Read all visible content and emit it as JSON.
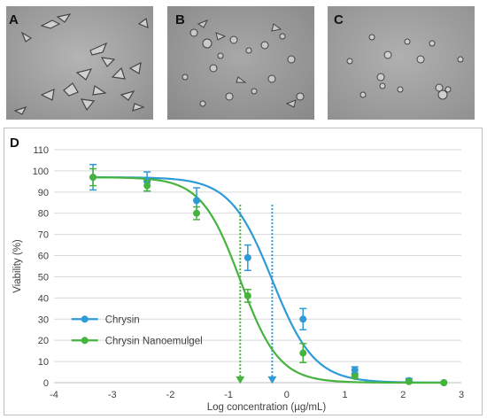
{
  "panels": {
    "a_label": "A",
    "b_label": "B",
    "c_label": "C",
    "d_label": "D"
  },
  "colors": {
    "chrysin": "#2e9bd6",
    "nanoemulgel": "#46b33f",
    "micrograph_bg": "#9e9e9e"
  },
  "chart_data": {
    "type": "line",
    "xlabel": "Log concentration (µg/mL)",
    "ylabel": "Viability  (%)",
    "xlim": [
      -4,
      3
    ],
    "ylim": [
      0,
      110
    ],
    "x_ticks": [
      -4,
      -3,
      -2,
      -1,
      0,
      1,
      2,
      3
    ],
    "y_ticks": [
      0,
      10,
      20,
      30,
      40,
      50,
      60,
      70,
      80,
      90,
      100,
      110
    ],
    "grid": true,
    "legend_position": "lower-left",
    "series": [
      {
        "name": "Chrysin",
        "color": "#2e9bd6",
        "x": [
          -3.33,
          -2.4,
          -1.55,
          -0.67,
          0.28,
          1.17,
          2.1,
          2.7
        ],
        "y": [
          97,
          95,
          86,
          59,
          30,
          6,
          1,
          0
        ],
        "err": [
          6,
          4.5,
          6,
          6,
          5,
          1.5,
          1,
          0
        ],
        "curve": {
          "top": 97,
          "bottom": 0,
          "log_ic50": -0.25,
          "hill": 1.2
        },
        "ic50_marker_x": -0.25
      },
      {
        "name": "Chrysin Nanoemulgel",
        "color": "#46b33f",
        "x": [
          -3.33,
          -2.4,
          -1.55,
          -0.67,
          0.28,
          1.17,
          2.1,
          2.7
        ],
        "y": [
          97,
          93,
          80,
          41,
          14,
          3,
          0.5,
          0
        ],
        "err": [
          4,
          2.5,
          3,
          3,
          4.5,
          1,
          0.5,
          0
        ],
        "curve": {
          "top": 97,
          "bottom": 0,
          "log_ic50": -0.8,
          "hill": 1.3
        },
        "ic50_marker_x": -0.8
      }
    ]
  }
}
